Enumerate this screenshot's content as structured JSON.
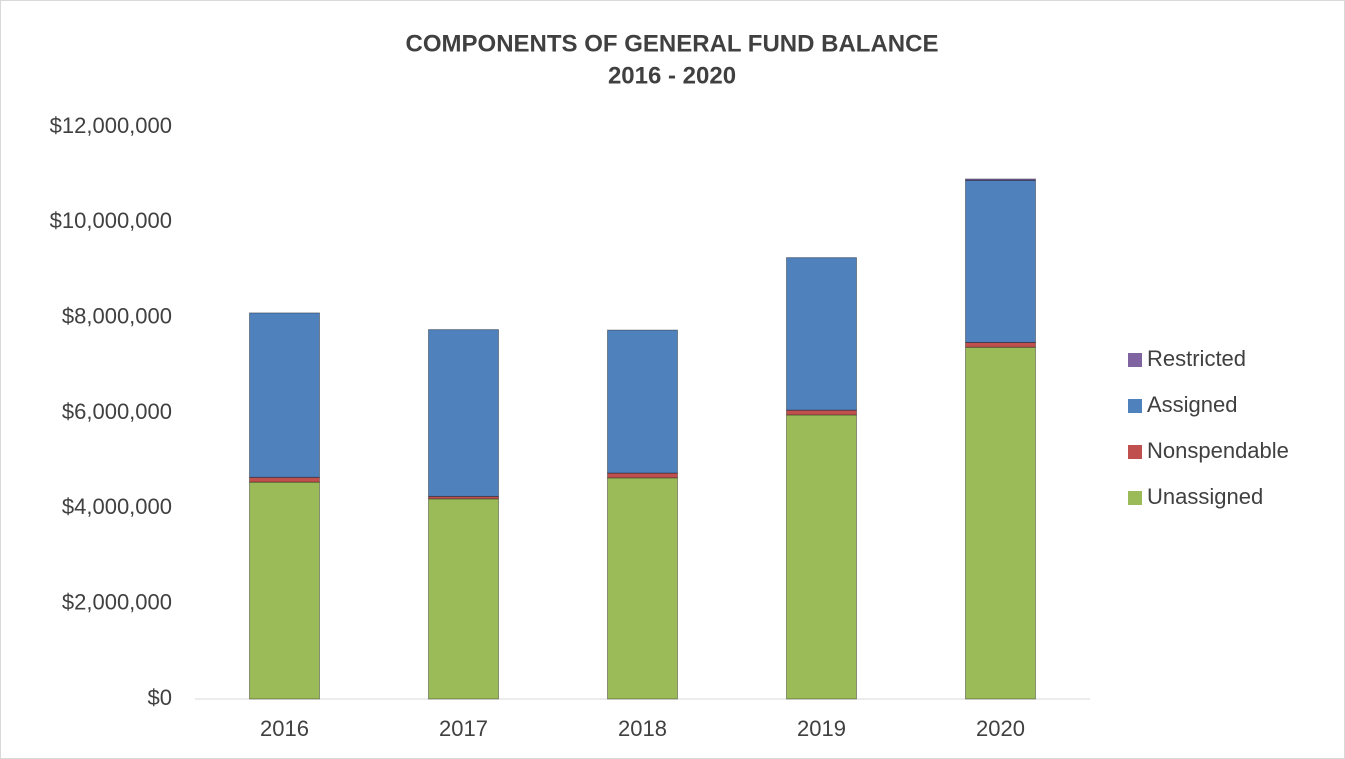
{
  "chart_data": {
    "type": "stacked_bar",
    "title": "COMPONENTS OF GENERAL FUND BALANCE",
    "subtitle": "2016 - 2020",
    "categories": [
      "2016",
      "2017",
      "2018",
      "2019",
      "2020"
    ],
    "series": [
      {
        "name": "Unassigned",
        "color": "#9bbb59",
        "values": [
          4550000,
          4200000,
          4640000,
          5960000,
          7380000
        ]
      },
      {
        "name": "Nonspendable",
        "color": "#c0504d",
        "values": [
          100000,
          50000,
          100000,
          100000,
          100000
        ]
      },
      {
        "name": "Assigned",
        "color": "#4f81bd",
        "values": [
          3450000,
          3500000,
          3000000,
          3200000,
          3400000
        ]
      },
      {
        "name": "Restricted",
        "color": "#8064a2",
        "values": [
          0,
          0,
          0,
          0,
          30000
        ]
      }
    ],
    "ylim": [
      0,
      12000000
    ],
    "yticks": [
      {
        "value": 0,
        "label": "$0"
      },
      {
        "value": 2000000,
        "label": "$2,000,000"
      },
      {
        "value": 4000000,
        "label": "$4,000,000"
      },
      {
        "value": 6000000,
        "label": "$6,000,000"
      },
      {
        "value": 8000000,
        "label": "$8,000,000"
      },
      {
        "value": 10000000,
        "label": "$10,000,000"
      },
      {
        "value": 12000000,
        "label": "$12,000,000"
      }
    ],
    "legend": "right"
  }
}
